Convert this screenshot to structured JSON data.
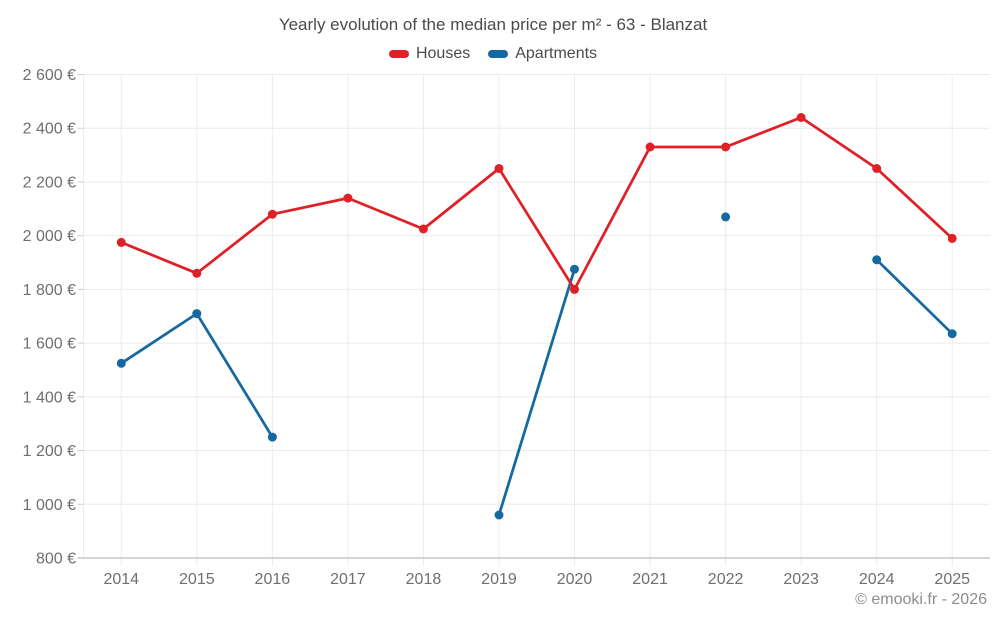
{
  "chart_data": {
    "type": "line",
    "title": "Yearly evolution of the median price per m² - 63 - Blanzat",
    "categories": [
      "2014",
      "2015",
      "2016",
      "2017",
      "2018",
      "2019",
      "2020",
      "2021",
      "2022",
      "2023",
      "2024",
      "2025"
    ],
    "series": [
      {
        "name": "Houses",
        "color": "#df2127",
        "values": [
          1975,
          1860,
          2080,
          2140,
          2025,
          2250,
          1800,
          2330,
          2330,
          2440,
          2250,
          1990
        ]
      },
      {
        "name": "Apartments",
        "color": "#1569a0",
        "values": [
          1525,
          1710,
          1250,
          null,
          null,
          960,
          1875,
          null,
          2070,
          null,
          1910,
          1635
        ]
      }
    ],
    "ylim": [
      800,
      2600
    ],
    "ytick_step": 200,
    "ytick_labels": [
      "800 €",
      "1 000 €",
      "1 200 €",
      "1 400 €",
      "1 600 €",
      "1 800 €",
      "2 000 €",
      "2 200 €",
      "2 400 €",
      "2 600 €"
    ],
    "grid": true,
    "legend_position": "top",
    "colors": {
      "grid_h": "#ebebeb",
      "grid_v": "#ececec",
      "axis_line": "#c6c6c6",
      "tick": "#d0d0d0",
      "tick_label": "#6f6f6f",
      "title_text": "#4b4b4b",
      "copyright_text": "#8d8d8d"
    }
  },
  "footer": {
    "copyright": "© emooki.fr - 2026"
  }
}
